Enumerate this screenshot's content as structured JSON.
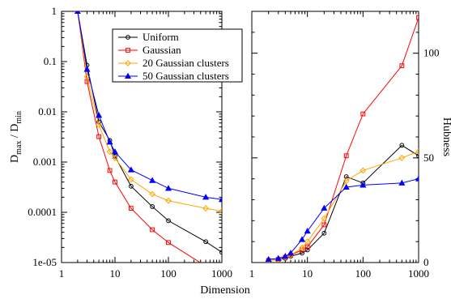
{
  "chart_data": [
    {
      "type": "line",
      "title": "",
      "xlabel": "Dimension",
      "ylabel": {
        "main": "D",
        "sub1": "max",
        "sep": " / D",
        "sub2": "min"
      },
      "xscale": "log",
      "yscale": "log",
      "xlim": [
        1,
        1000
      ],
      "ylim": [
        1e-05,
        1
      ],
      "xticks": [
        {
          "value": 1,
          "label": "1"
        },
        {
          "value": 10,
          "label": "10"
        },
        {
          "value": 100,
          "label": "100"
        },
        {
          "value": 1000,
          "label": "1000"
        }
      ],
      "yticks": [
        {
          "value": 1,
          "label": "1"
        },
        {
          "value": 0.1,
          "label": "0.1"
        },
        {
          "value": 0.01,
          "label": "0.01"
        },
        {
          "value": 0.001,
          "label": "0.001"
        },
        {
          "value": 0.0001,
          "label": "0.0001"
        },
        {
          "value": 1e-05,
          "label": "1e-05"
        }
      ],
      "legend": {
        "placement": "top-right"
      },
      "x": [
        2,
        3,
        5,
        8,
        10,
        20,
        50,
        100,
        500,
        1000
      ],
      "series": [
        {
          "name": "Uniform",
          "color": "#000000",
          "marker": "circle",
          "values": [
            1,
            0.085,
            0.0063,
            0.0027,
            0.0013,
            0.00033,
            0.00013,
            6.8e-05,
            2.6e-05,
            1.6e-05
          ]
        },
        {
          "name": "Gaussian",
          "color": "#ff0000",
          "marker": "square",
          "values": [
            1,
            0.04,
            0.0032,
            0.00068,
            0.0004,
            0.00012,
            4.5e-05,
            2.5e-05,
            8.5e-06,
            5.3e-06
          ]
        },
        {
          "name": "20 Gaussian clusters",
          "color": "#ffa500",
          "marker": "diamond",
          "values": [
            1,
            0.05,
            0.0055,
            0.0016,
            0.0012,
            0.00045,
            0.00023,
            0.00017,
            0.00012,
            0.000105
          ]
        },
        {
          "name": "50 Gaussian clusters",
          "color": "#0000ff",
          "marker": "triangle",
          "values": [
            1,
            0.07,
            0.0085,
            0.0025,
            0.0016,
            0.0007,
            0.00043,
            0.0003,
            0.0002,
            0.00018
          ]
        }
      ]
    },
    {
      "type": "line",
      "title": "",
      "xlabel": "Dimension",
      "ylabel": "Hubness",
      "xscale": "log",
      "yscale": "linear",
      "xlim": [
        1,
        1000
      ],
      "ylim": [
        0,
        120
      ],
      "xticks": [
        {
          "value": 1,
          "label": "1"
        },
        {
          "value": 10,
          "label": "10"
        },
        {
          "value": 100,
          "label": "100"
        },
        {
          "value": 1000,
          "label": "1000"
        }
      ],
      "yticks": [
        {
          "value": 0,
          "label": "0"
        },
        {
          "value": 50,
          "label": "50"
        },
        {
          "value": 100,
          "label": "100"
        }
      ],
      "x": [
        2,
        3,
        4,
        5,
        8,
        10,
        20,
        50,
        100,
        500,
        1000
      ],
      "series": [
        {
          "name": "Uniform",
          "color": "#000000",
          "marker": "circle",
          "values": [
            1,
            1.5,
            2,
            3,
            4.5,
            6,
            14,
            41,
            38,
            56,
            51
          ]
        },
        {
          "name": "Gaussian",
          "color": "#ff0000",
          "marker": "square",
          "values": [
            1,
            1.5,
            2.5,
            3.5,
            6,
            7.5,
            18,
            51,
            71,
            94,
            117
          ]
        },
        {
          "name": "20 Gaussian clusters",
          "color": "#ffa500",
          "marker": "diamond",
          "values": [
            1,
            1.5,
            2.5,
            3.5,
            7,
            10,
            21,
            39,
            44,
            50,
            53
          ]
        },
        {
          "name": "50 Gaussian clusters",
          "color": "#0000ff",
          "marker": "triangle",
          "values": [
            1.5,
            2,
            3,
            4.5,
            11,
            15,
            26,
            36,
            37,
            38,
            40
          ]
        }
      ]
    }
  ]
}
